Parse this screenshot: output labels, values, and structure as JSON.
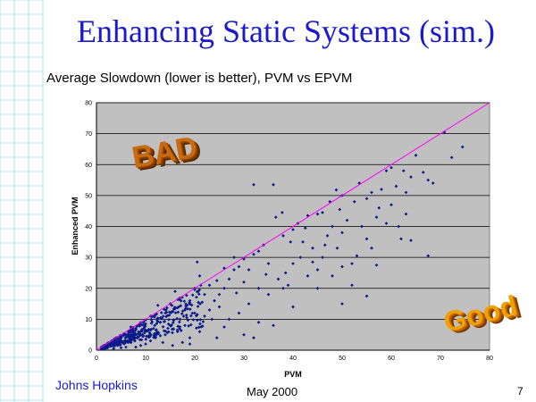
{
  "slide": {
    "title": "Enhancing Static Systems (sim.)",
    "subtitle": "Average Slowdown (lower is better), PVM vs EPVM",
    "footer_left": "Johns Hopkins",
    "footer_center": "May 2000",
    "page_number": "7"
  },
  "colors": {
    "background_grid": "#a8e8f8",
    "plot_bg": "#c0c0c0",
    "points": "#0a1a8a",
    "diagonal": "#ff00ff",
    "title": "#1a1acc",
    "stamp_bad": "#c96a10",
    "stamp_good": "#f0a000"
  },
  "chart_data": {
    "type": "scatter",
    "xlabel": "PVM",
    "ylabel": "Enhanced PVM",
    "xlim": [
      0,
      80
    ],
    "ylim": [
      0,
      80
    ],
    "xticks": [
      0,
      10,
      20,
      30,
      40,
      50,
      60,
      70,
      80
    ],
    "yticks": [
      0,
      10,
      20,
      30,
      40,
      50,
      60,
      70,
      80
    ],
    "grid": "horizontal",
    "reference_line": {
      "from": [
        0,
        0
      ],
      "to": [
        80,
        80
      ]
    },
    "annotations": [
      "BAD",
      "Good"
    ],
    "series": [
      {
        "points": [
          [
            70.8,
            70.5
          ],
          [
            74.5,
            65.7
          ],
          [
            72.3,
            62.3
          ],
          [
            65,
            63
          ],
          [
            66.5,
            57.5
          ],
          [
            67.5,
            55
          ],
          [
            68.5,
            54
          ],
          [
            62.5,
            58
          ],
          [
            64,
            56
          ],
          [
            60,
            59
          ],
          [
            59,
            58
          ],
          [
            61,
            53
          ],
          [
            63,
            51
          ],
          [
            58,
            52
          ],
          [
            56,
            51
          ],
          [
            53.5,
            54
          ],
          [
            52.5,
            48
          ],
          [
            55,
            49
          ],
          [
            50,
            50
          ],
          [
            48.8,
            51.8
          ],
          [
            49.5,
            45.5
          ],
          [
            47.5,
            48
          ],
          [
            46,
            44.5
          ],
          [
            45,
            44
          ],
          [
            43,
            43.5
          ],
          [
            41,
            41
          ],
          [
            40,
            39
          ],
          [
            38,
            37
          ],
          [
            36.5,
            43
          ],
          [
            37.8,
            44.5
          ],
          [
            36,
            53.5
          ],
          [
            32,
            53.5
          ],
          [
            34,
            34
          ],
          [
            32,
            31
          ],
          [
            30,
            29.5
          ],
          [
            28,
            26
          ],
          [
            26,
            26.5
          ],
          [
            24.5,
            22.5
          ],
          [
            50,
            38
          ],
          [
            48,
            40
          ],
          [
            47,
            37
          ],
          [
            46,
            30
          ],
          [
            53,
            30.5
          ],
          [
            55,
            36
          ],
          [
            56,
            33
          ],
          [
            57,
            27.5
          ],
          [
            52,
            28
          ],
          [
            50,
            27
          ],
          [
            48,
            24
          ],
          [
            44,
            33
          ],
          [
            42,
            35
          ],
          [
            41.5,
            30
          ],
          [
            40,
            28
          ],
          [
            39.5,
            35
          ],
          [
            38.5,
            25
          ],
          [
            62,
            36
          ],
          [
            63,
            44
          ],
          [
            61.5,
            40
          ],
          [
            64,
            35.5
          ],
          [
            67.5,
            30.5
          ],
          [
            55,
            17.5
          ],
          [
            50,
            15
          ],
          [
            52,
            21
          ],
          [
            45,
            20
          ],
          [
            38,
            20
          ],
          [
            36,
            8
          ],
          [
            26,
            7.5
          ],
          [
            33,
            20
          ],
          [
            35,
            18
          ],
          [
            31,
            15
          ],
          [
            28.5,
            18.5
          ],
          [
            25,
            14
          ],
          [
            23.5,
            10
          ],
          [
            22,
            18
          ],
          [
            30,
            22
          ],
          [
            29,
            12
          ],
          [
            27,
            10
          ],
          [
            40,
            14
          ],
          [
            33,
            9
          ],
          [
            24.5,
            4
          ],
          [
            21,
            6
          ],
          [
            19,
            4
          ],
          [
            17.5,
            2.5
          ],
          [
            20,
            12
          ],
          [
            21.5,
            15.5
          ],
          [
            20,
            20
          ],
          [
            19,
            16
          ],
          [
            18,
            13
          ],
          [
            17,
            10
          ],
          [
            16,
            19
          ],
          [
            15,
            15
          ],
          [
            14,
            12
          ],
          [
            13,
            9
          ],
          [
            12.5,
            14.5
          ],
          [
            11,
            11
          ],
          [
            10,
            8.5
          ],
          [
            9,
            5
          ],
          [
            8,
            7
          ],
          [
            7,
            7.5
          ],
          [
            6,
            5
          ],
          [
            5,
            4.5
          ],
          [
            4,
            3
          ],
          [
            3,
            2.5
          ],
          [
            2,
            1.5
          ],
          [
            1.5,
            1
          ],
          [
            18,
            8
          ],
          [
            16.5,
            6
          ],
          [
            15,
            8
          ],
          [
            14,
            5
          ],
          [
            12,
            4
          ],
          [
            13.5,
            2.5
          ],
          [
            11,
            3
          ],
          [
            10,
            2
          ],
          [
            9,
            1.5
          ],
          [
            22,
            11
          ],
          [
            23,
            13
          ],
          [
            24,
            16
          ],
          [
            26,
            20
          ],
          [
            27,
            23
          ],
          [
            28,
            30
          ],
          [
            29,
            27
          ],
          [
            31,
            26
          ],
          [
            33,
            32
          ],
          [
            35,
            28
          ],
          [
            34.5,
            24.5
          ],
          [
            37,
            23
          ],
          [
            39,
            21
          ],
          [
            43,
            24
          ],
          [
            45,
            26
          ],
          [
            20.5,
            28.5
          ],
          [
            21,
            24
          ],
          [
            23,
            21
          ],
          [
            25,
            18
          ],
          [
            19,
            2
          ],
          [
            15.5,
            1.5
          ],
          [
            8,
            1
          ],
          [
            6,
            1
          ],
          [
            5,
            0.8
          ],
          [
            3.5,
            0.5
          ],
          [
            30,
            5
          ],
          [
            32,
            4
          ],
          [
            44,
            28.5
          ],
          [
            46.5,
            34
          ],
          [
            42.5,
            39.5
          ],
          [
            49,
            33
          ],
          [
            51,
            42
          ],
          [
            54,
            40
          ],
          [
            57.5,
            46
          ],
          [
            60,
            47
          ],
          [
            57,
            43
          ],
          [
            59,
            41
          ]
        ]
      }
    ]
  }
}
